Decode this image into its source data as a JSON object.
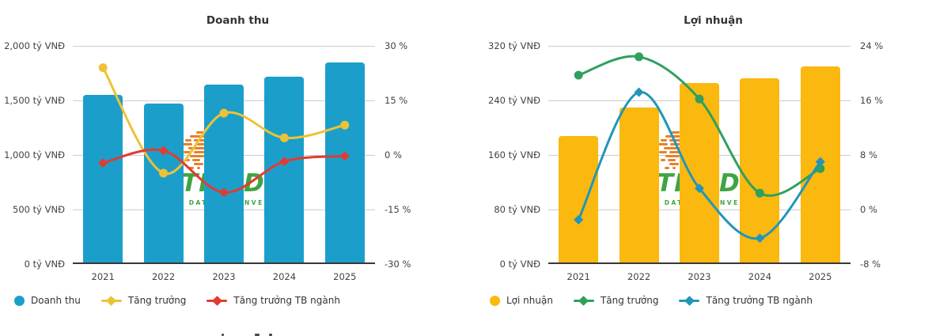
{
  "watermark": {
    "main_left": "TR",
    "main_right": "DE",
    "caption_left": "E DATA",
    "caption_right": "NVEST",
    "dots_color": "#e8802a",
    "text_color": "#3fa443"
  },
  "chart_data": [
    {
      "type": "bar+line",
      "title": "Doanh thu",
      "categories": [
        "2021",
        "2022",
        "2023",
        "2024",
        "2025"
      ],
      "bar_series": {
        "name": "Doanh thu",
        "unit": "tỷ VNĐ",
        "color": "#1b9fca",
        "values": [
          1550,
          1470,
          1645,
          1720,
          1850
        ]
      },
      "line_series": [
        {
          "name": "Tăng trưởng",
          "unit": "%",
          "color": "#eec236",
          "marker": "circle",
          "values": [
            24,
            -5,
            11.5,
            4.7,
            8.2
          ]
        },
        {
          "name": "Tăng trưởng TB ngành",
          "unit": "%",
          "color": "#e23b32",
          "marker": "diamond",
          "values": [
            -2.2,
            1.2,
            -10.3,
            -1.8,
            -0.3
          ]
        }
      ],
      "y_axis_left": {
        "labels": [
          "2,000 tỷ VNĐ",
          "1,500 tỷ VNĐ",
          "1,000 tỷ VNĐ",
          "500 tỷ VNĐ",
          "0 tỷ VNĐ"
        ],
        "min": 0,
        "max": 2000
      },
      "y_axis_right": {
        "labels": [
          "30 %",
          "15 %",
          "0 %",
          "-15 %",
          "-30 %"
        ],
        "min": -30,
        "max": 30
      },
      "grid": true,
      "legend_position": "bottom-left"
    },
    {
      "type": "bar+line",
      "title": "Lợi nhuận",
      "categories": [
        "2021",
        "2022",
        "2023",
        "2024",
        "2025"
      ],
      "bar_series": {
        "name": "Lợi nhuận",
        "unit": "tỷ VNĐ",
        "color": "#fbb80f",
        "values": [
          188,
          230,
          266,
          272,
          290
        ]
      },
      "line_series": [
        {
          "name": "Tăng trưởng",
          "unit": "%",
          "color": "#2fa05d",
          "marker": "circle",
          "values": [
            19.7,
            22.4,
            16.2,
            2.4,
            6
          ]
        },
        {
          "name": "Tăng trưởng TB ngành",
          "unit": "%",
          "color": "#2196ba",
          "marker": "diamond",
          "values": [
            -1.5,
            17.2,
            3.1,
            -4.2,
            7
          ]
        }
      ],
      "y_axis_left": {
        "labels": [
          "320 tỷ VNĐ",
          "240 tỷ VNĐ",
          "160 tỷ VNĐ",
          "80 tỷ VNĐ",
          "0 tỷ VNĐ"
        ],
        "min": 0,
        "max": 320
      },
      "y_axis_right": {
        "labels": [
          "24 %",
          "16 %",
          "8 %",
          "0 %",
          "-8 %"
        ],
        "min": -8,
        "max": 24
      },
      "grid": true,
      "legend_position": "bottom-left"
    }
  ]
}
